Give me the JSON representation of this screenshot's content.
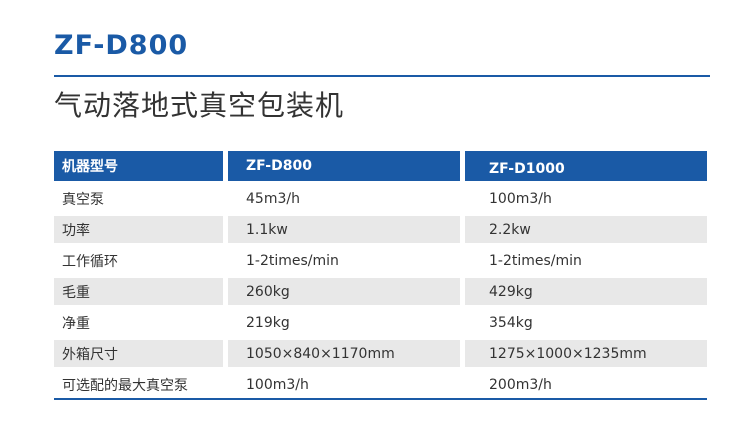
{
  "model": "ZF-D800",
  "product_name": "气动落地式真空包装机",
  "colors": {
    "accent": "#1a5aa6",
    "row_shade": "#e8e8e8",
    "text": "#333333"
  },
  "table": {
    "headers": [
      "机器型号",
      "ZF-D800",
      "ZF-D1000"
    ],
    "rows": [
      [
        "真空泵",
        "45m3/h",
        "100m3/h"
      ],
      [
        "功率",
        "1.1kw",
        "2.2kw"
      ],
      [
        "工作循环",
        "1-2times/min",
        "1-2times/min"
      ],
      [
        "毛重",
        "260kg",
        "429kg"
      ],
      [
        "净重",
        "219kg",
        "354kg"
      ],
      [
        "外箱尺寸",
        "1050×840×1170mm",
        "1275×1000×1235mm"
      ],
      [
        "可选配的最大真空泵",
        "100m3/h",
        "200m3/h"
      ]
    ]
  }
}
